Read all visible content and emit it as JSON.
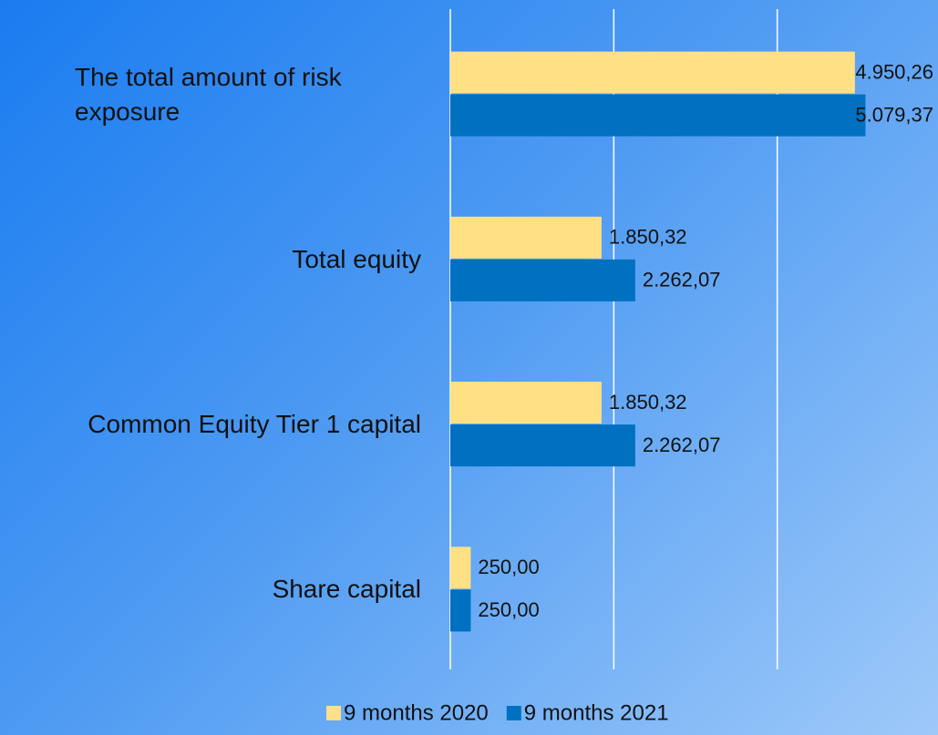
{
  "chart_data": {
    "type": "barh",
    "categories": [
      "The total amount of risk exposure",
      "Total equity",
      "Common Equity Tier 1 capital",
      "Share capital"
    ],
    "series": [
      {
        "name": "9 months 2020",
        "color": "#ffe084",
        "values": [
          4950.26,
          1850.32,
          1850.32,
          250.0
        ],
        "value_labels": [
          "4.950,26",
          "1.850,32",
          "1.850,32",
          "250,00"
        ]
      },
      {
        "name": "9 months 2021",
        "color": "#0070c0",
        "values": [
          5079.37,
          2262.07,
          2262.07,
          250.0
        ],
        "value_labels": [
          "5.079,37",
          "2.262,07",
          "2.262,07",
          "250,00"
        ]
      }
    ],
    "xlim": [
      0,
      6000
    ],
    "xticks": [
      0,
      2000,
      4000
    ],
    "grid": true,
    "legend": "bottom"
  }
}
